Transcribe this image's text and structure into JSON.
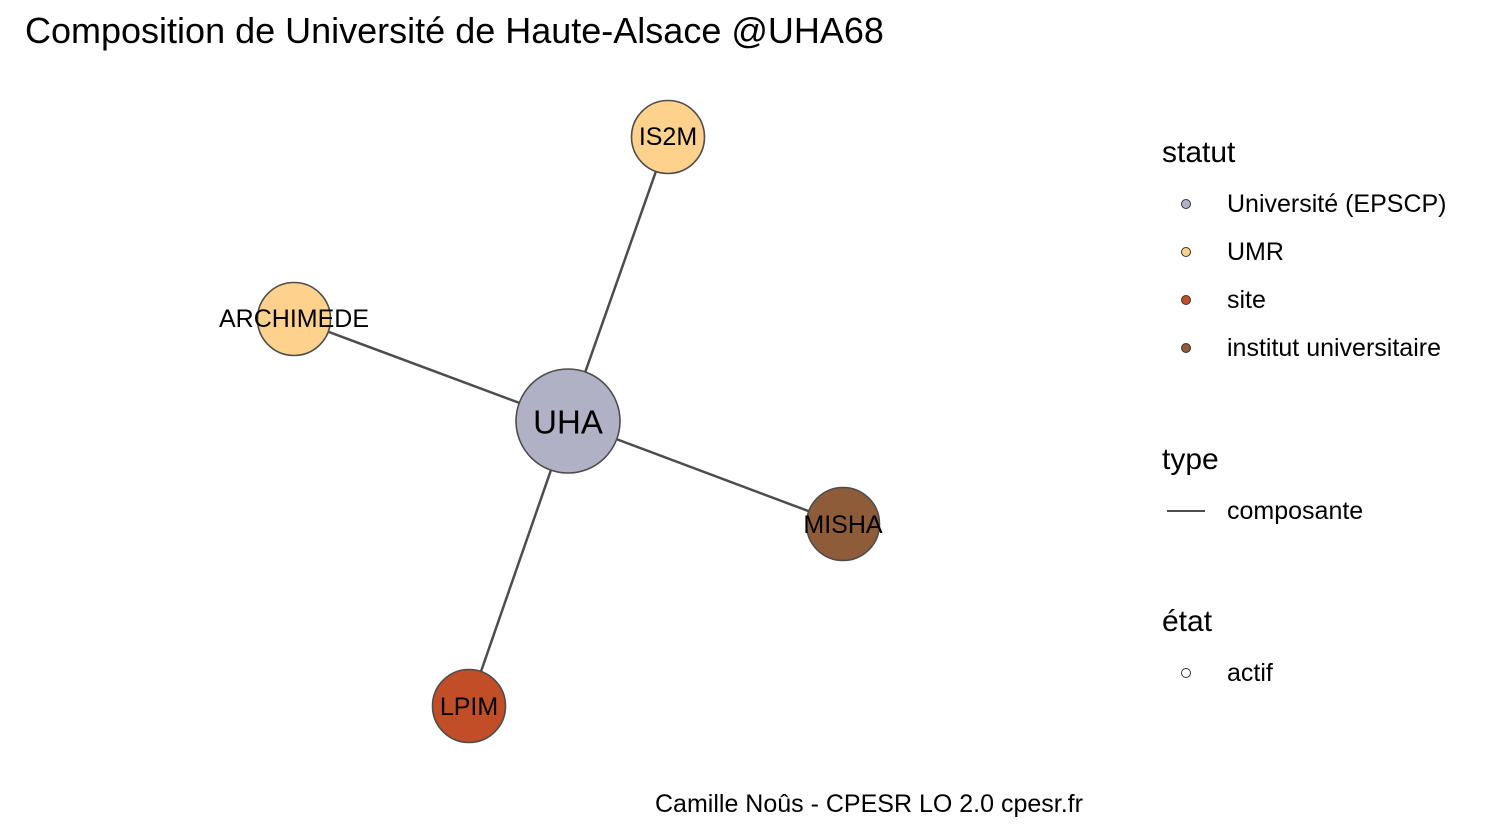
{
  "title": "Composition de Université de Haute-Alsace @UHA68",
  "caption": "Camille Noûs - CPESR LO 2.0 cpesr.fr",
  "graph": {
    "edge_color": "#4d4d4d",
    "node_stroke": "#4d4d4d",
    "center": {
      "id": "UHA",
      "label": "UHA",
      "statut": "Université (EPSCP)",
      "color": "#b0b1c4"
    },
    "nodes": [
      {
        "id": "IS2M",
        "label": "IS2M",
        "statut": "UMR",
        "color": "#fed18d"
      },
      {
        "id": "ARCHIMEDE",
        "label": "ARCHIMEDE",
        "statut": "UMR",
        "color": "#fed18d"
      },
      {
        "id": "MISHA",
        "label": "MISHA",
        "statut": "institut universitaire",
        "color": "#8f5c3a"
      },
      {
        "id": "LPIM",
        "label": "LPIM",
        "statut": "site",
        "color": "#c24e27"
      }
    ],
    "edges": [
      {
        "from": "UHA",
        "to": "IS2M",
        "type": "composante"
      },
      {
        "from": "UHA",
        "to": "ARCHIMEDE",
        "type": "composante"
      },
      {
        "from": "UHA",
        "to": "MISHA",
        "type": "composante"
      },
      {
        "from": "UHA",
        "to": "LPIM",
        "type": "composante"
      }
    ]
  },
  "legend": {
    "statut": {
      "title": "statut",
      "items": [
        {
          "label": "Université (EPSCP)",
          "color": "#b0b1c4"
        },
        {
          "label": "UMR",
          "color": "#fed18d"
        },
        {
          "label": "site",
          "color": "#c24e27"
        },
        {
          "label": "institut universitaire",
          "color": "#8f5c3a"
        }
      ]
    },
    "type": {
      "title": "type",
      "items": [
        {
          "label": "composante"
        }
      ]
    },
    "etat": {
      "title": "état",
      "items": [
        {
          "label": "actif",
          "color": "#ffffff"
        }
      ]
    }
  }
}
